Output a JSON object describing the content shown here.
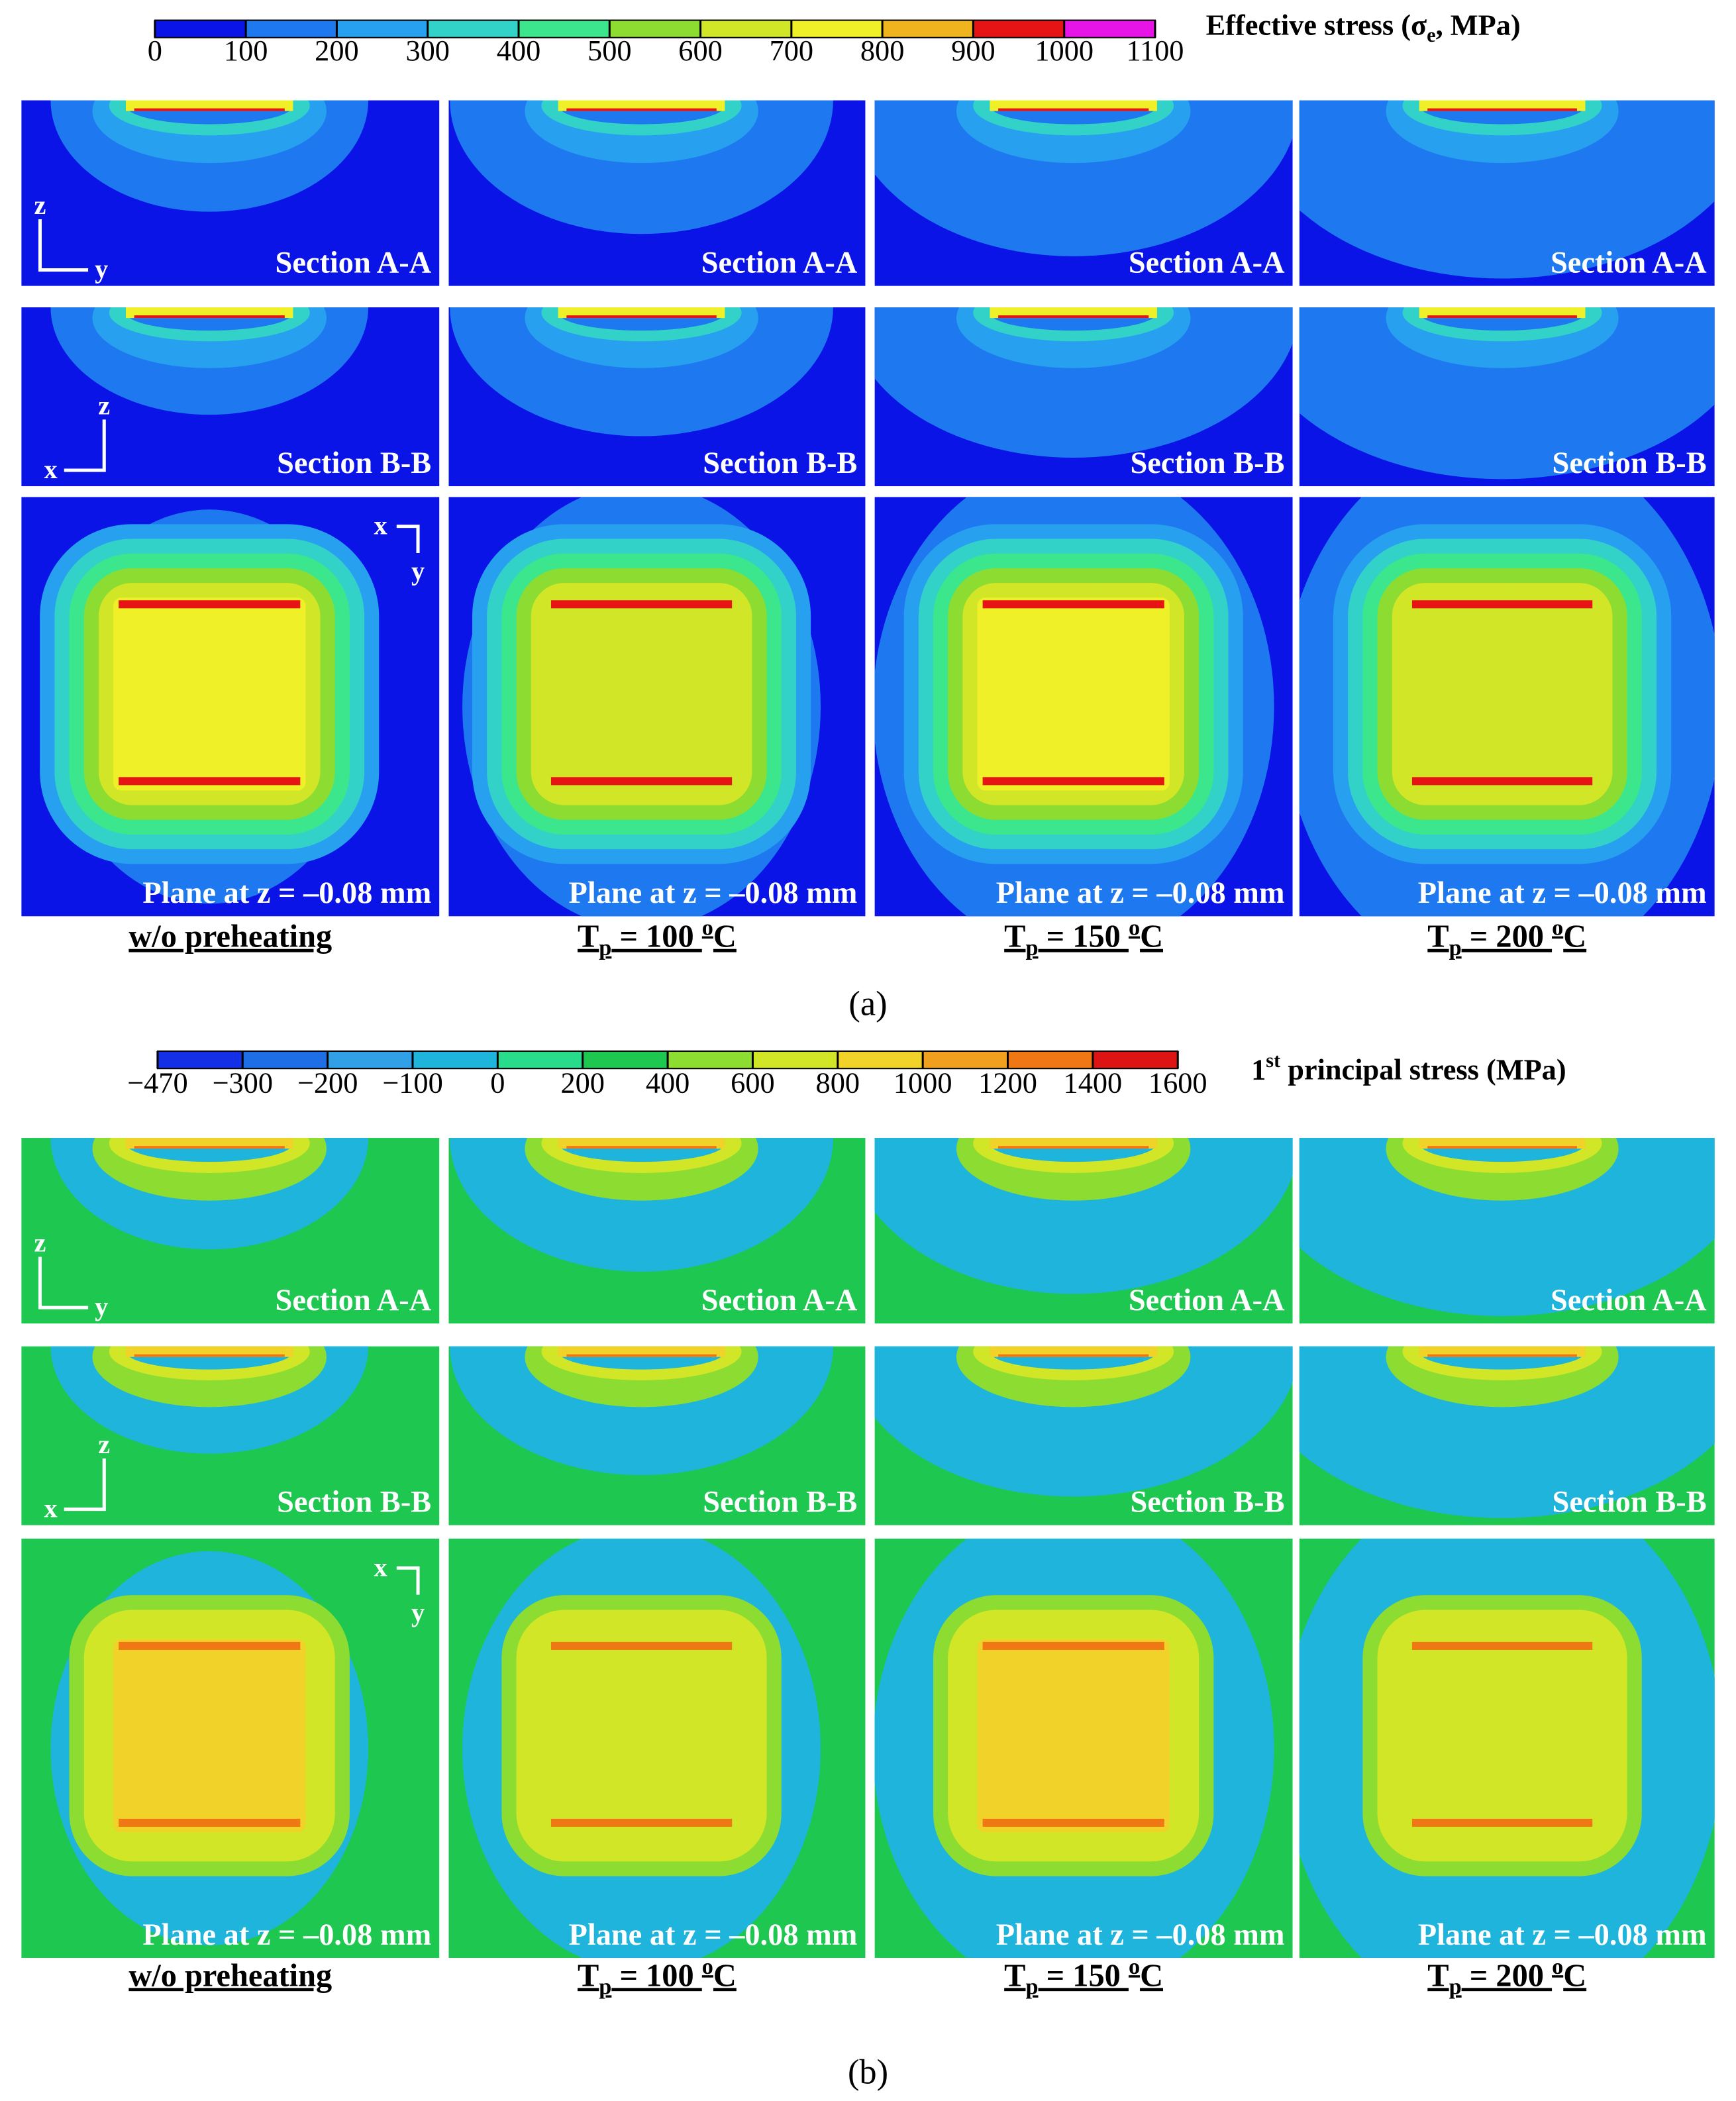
{
  "panels": [
    {
      "caption": "(a)",
      "colorbar": {
        "ticks": [
          "0",
          "100",
          "200",
          "300",
          "400",
          "500",
          "600",
          "700",
          "800",
          "900",
          "1000",
          "1100"
        ],
        "label": {
          "text": "Effective stress (σ",
          "sub": "e",
          "rest": ", MPa)"
        },
        "colors": [
          "#0a14e6",
          "#1e78f0",
          "#28a0f0",
          "#32d2c8",
          "#3ce68c",
          "#8cdc32",
          "#d2e628",
          "#f0f028",
          "#f0b41e",
          "#e61414",
          "#e614e6"
        ]
      },
      "rows": [
        {
          "label": "Section A-A",
          "axes": [
            "z",
            "y"
          ]
        },
        {
          "label": "Section B-B",
          "axes": [
            "z",
            "x"
          ]
        },
        {
          "label": "Plane at z = –0.08 mm",
          "axes": [
            "x",
            "y"
          ]
        }
      ],
      "columns": [
        {
          "text": "w/o preheating"
        },
        {
          "text": "T",
          "sub": "p",
          "value": " = 100 ",
          "sup": "o",
          "unit": "C"
        },
        {
          "text": "T",
          "sub": "p",
          "value": " = 150 ",
          "sup": "o",
          "unit": "C"
        },
        {
          "text": "T",
          "sub": "p",
          "value": " = 200 ",
          "sup": "o",
          "unit": "C"
        }
      ]
    },
    {
      "caption": "(b)",
      "colorbar": {
        "ticks": [
          "−470",
          "−300",
          "−200",
          "−100",
          "0",
          "200",
          "400",
          "600",
          "800",
          "1000",
          "1200",
          "1400",
          "1600"
        ],
        "label": {
          "text": "1",
          "sup": "st",
          "rest": " principal stress (MPa)"
        },
        "colors": [
          "#1430e6",
          "#1e6ee6",
          "#32a0e6",
          "#1eb4dc",
          "#28dc8c",
          "#1ec850",
          "#8cdc32",
          "#d2e628",
          "#f0d228",
          "#f0a01e",
          "#f07814",
          "#dc1414"
        ]
      },
      "rows": [
        {
          "label": "Section A-A",
          "axes": [
            "z",
            "y"
          ]
        },
        {
          "label": "Section B-B",
          "axes": [
            "z",
            "x"
          ]
        },
        {
          "label": "Plane at z = –0.08 mm",
          "axes": [
            "x",
            "y"
          ]
        }
      ],
      "columns": [
        {
          "text": "w/o preheating"
        },
        {
          "text": "T",
          "sub": "p",
          "value": " = 100 ",
          "sup": "o",
          "unit": "C"
        },
        {
          "text": "T",
          "sub": "p",
          "value": " = 150 ",
          "sup": "o",
          "unit": "C"
        },
        {
          "text": "T",
          "sub": "p",
          "value": " = 200 ",
          "sup": "o",
          "unit": "C"
        }
      ]
    }
  ]
}
